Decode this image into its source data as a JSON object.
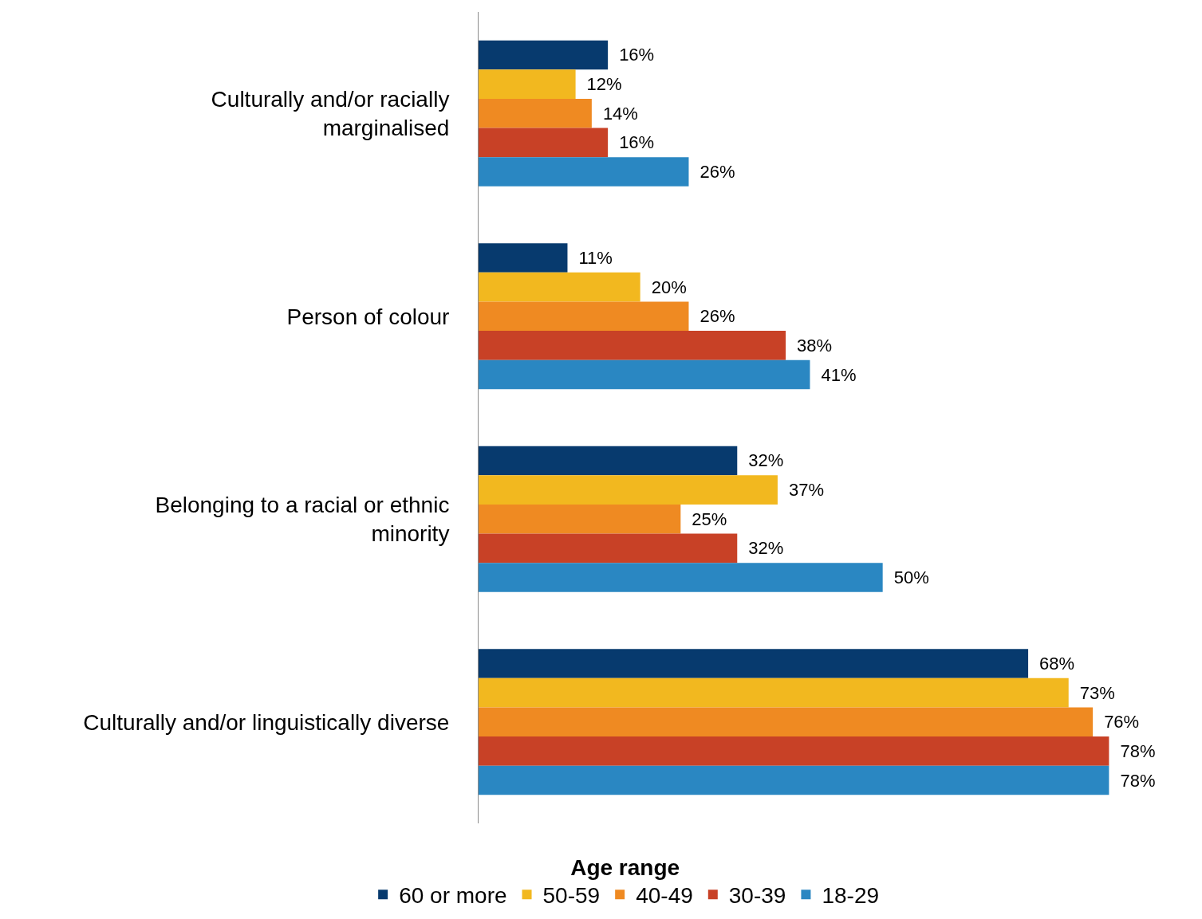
{
  "chart_data": {
    "type": "bar",
    "orientation": "horizontal",
    "legend_title": "Age range",
    "legend": "bottom",
    "categories": [
      "Culturally and/or racially\nmarginalised",
      "Person of colour",
      "Belonging to a racial or ethnic\nminority",
      "Culturally and/or linguistically diverse"
    ],
    "series": [
      {
        "name": "60 or more",
        "color": "#073a6e",
        "values": [
          16,
          11,
          32,
          68
        ],
        "value_labels": [
          "16%",
          "11%",
          "32%",
          "68%"
        ]
      },
      {
        "name": "50-59",
        "color": "#f2b81f",
        "values": [
          12,
          20,
          37,
          73
        ],
        "value_labels": [
          "12%",
          "20%",
          "37%",
          "73%"
        ]
      },
      {
        "name": "40-49",
        "color": "#ef8a22",
        "values": [
          14,
          26,
          25,
          76
        ],
        "value_labels": [
          "14%",
          "26%",
          "25%",
          "76%"
        ]
      },
      {
        "name": "30-39",
        "color": "#c84126",
        "values": [
          16,
          38,
          32,
          78
        ],
        "value_labels": [
          "16%",
          "38%",
          "32%",
          "78%"
        ]
      },
      {
        "name": "18-29",
        "color": "#2a87c2",
        "values": [
          26,
          41,
          50,
          78
        ],
        "value_labels": [
          "26%",
          "41%",
          "50%",
          "78%"
        ]
      }
    ]
  }
}
